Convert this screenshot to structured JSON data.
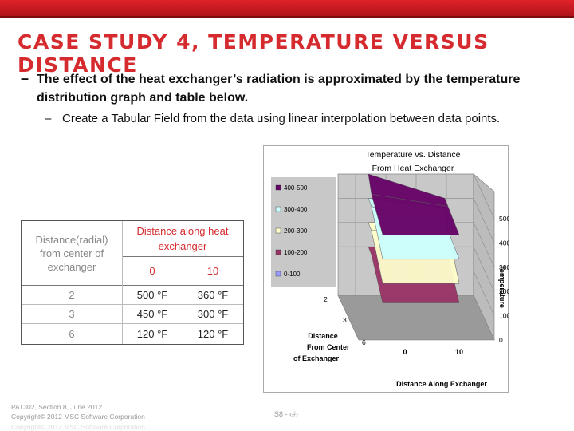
{
  "slide": {
    "title": "CASE STUDY 4, TEMPERATURE VERSUS DISTANCE",
    "bullet_marker": "–",
    "bullet": "The effect of the heat exchanger’s radiation is approximated by the temperature distribution graph and table below.",
    "sub_marker": "–",
    "sub_bullet": "Create a Tabular Field from the data using linear interpolation between data points."
  },
  "table": {
    "header_left": "Distance(radial) from center of exchanger",
    "header_right": "Distance along heat exchanger",
    "columns": [
      "0",
      "10"
    ],
    "rows": [
      {
        "radial": "2",
        "values": [
          "500 °F",
          "360 °F"
        ]
      },
      {
        "radial": "3",
        "values": [
          "450 °F",
          "300 °F"
        ]
      },
      {
        "radial": "6",
        "values": [
          "120 °F",
          "120 °F"
        ]
      }
    ]
  },
  "chart_data": {
    "type": "surface",
    "title": "Temperature vs. Distance From Heat Exchanger",
    "xlabel": "Distance Along Exchanger",
    "ylabel": "Distance From Center of Exchanger",
    "zlabel": "Temperature",
    "x_ticks": [
      "0",
      "10"
    ],
    "y_ticks": [
      "2",
      "3",
      "6"
    ],
    "z_ticks": [
      "0",
      "100",
      "200",
      "300",
      "400",
      "500"
    ],
    "zlim": [
      0,
      500
    ],
    "legend_position": "left",
    "legend": [
      {
        "label": "400-500",
        "color": "#660066"
      },
      {
        "label": "300-400",
        "color": "#ccffff"
      },
      {
        "label": "200-300",
        "color": "#ffffcc"
      },
      {
        "label": "100-200",
        "color": "#993366"
      },
      {
        "label": "0-100",
        "color": "#9999ff"
      }
    ],
    "series": [
      {
        "x": "0",
        "values": [
          500,
          450,
          120
        ]
      },
      {
        "x": "10",
        "values": [
          360,
          300,
          120
        ]
      }
    ]
  },
  "footer": {
    "course": "PAT302, Section 8, June 2012",
    "copyright": "Copyright© 2012 MSC Software Corporation",
    "copyright_ghost": "Copyright© 2012 MSC Software Corporation",
    "page": "S8 - ‹#›"
  }
}
